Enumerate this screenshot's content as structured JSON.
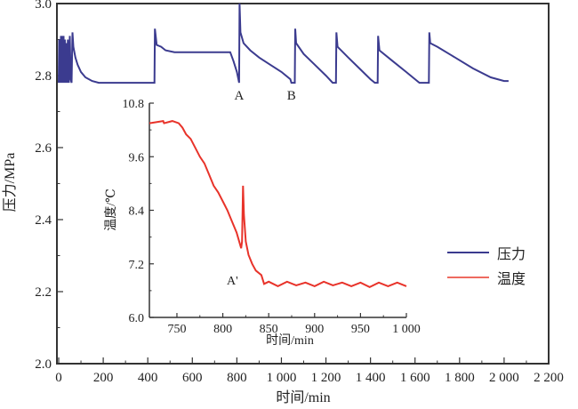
{
  "colors": {
    "pressure": "#3b3b8f",
    "temperature": "#e8332a",
    "legend_temperature": "#ee6a60"
  },
  "chart_data": [
    {
      "type": "line",
      "title": "",
      "xlabel": "时间/min",
      "ylabel": "压力/MPa",
      "xlim": [
        -8,
        2200
      ],
      "ylim": [
        2.0,
        3.0
      ],
      "xticks": [
        0,
        200,
        400,
        600,
        800,
        1000,
        1200,
        1400,
        1600,
        1800,
        2000,
        2200
      ],
      "xtick_labels": [
        "0",
        "200",
        "400",
        "600",
        "800",
        "1 000",
        "1 200",
        "1 400",
        "1 600",
        "1 800",
        "2 000",
        "2 200"
      ],
      "yticks": [
        2.0,
        2.2,
        2.4,
        2.6,
        2.8,
        3.0
      ],
      "ytick_labels": [
        "2.0",
        "2.2",
        "2.4",
        "2.6",
        "2.8",
        "3.0"
      ],
      "legend": {
        "placement": "right",
        "entries": [
          "压力",
          "温度"
        ]
      },
      "annotations": [
        {
          "text": "A",
          "x": 810,
          "y": 2.78
        },
        {
          "text": "B",
          "x": 1045,
          "y": 2.78
        }
      ],
      "series": [
        {
          "name": "压力",
          "points": [
            [
              0,
              2.78
            ],
            [
              2,
              2.9
            ],
            [
              4,
              2.78
            ],
            [
              6,
              2.9
            ],
            [
              8,
              2.78
            ],
            [
              10,
              2.91
            ],
            [
              12,
              2.78
            ],
            [
              14,
              2.91
            ],
            [
              16,
              2.78
            ],
            [
              18,
              2.91
            ],
            [
              20,
              2.78
            ],
            [
              22,
              2.91
            ],
            [
              25,
              2.78
            ],
            [
              28,
              2.9
            ],
            [
              31,
              2.78
            ],
            [
              34,
              2.89
            ],
            [
              38,
              2.78
            ],
            [
              41,
              2.9
            ],
            [
              46,
              2.78
            ],
            [
              50,
              2.91
            ],
            [
              54,
              2.79
            ],
            [
              58,
              2.78
            ],
            [
              62,
              2.92
            ],
            [
              66,
              2.88
            ],
            [
              75,
              2.85
            ],
            [
              85,
              2.83
            ],
            [
              100,
              2.81
            ],
            [
              120,
              2.795
            ],
            [
              150,
              2.785
            ],
            [
              180,
              2.78
            ],
            [
              240,
              2.78
            ],
            [
              280,
              2.78
            ],
            [
              430,
              2.78
            ],
            [
              432,
              2.93
            ],
            [
              440,
              2.885
            ],
            [
              460,
              2.88
            ],
            [
              480,
              2.87
            ],
            [
              520,
              2.865
            ],
            [
              770,
              2.865
            ],
            [
              785,
              2.84
            ],
            [
              800,
              2.81
            ],
            [
              810,
              2.78
            ],
            [
              812,
              3.0
            ],
            [
              816,
              2.92
            ],
            [
              830,
              2.89
            ],
            [
              860,
              2.87
            ],
            [
              900,
              2.85
            ],
            [
              950,
              2.83
            ],
            [
              1000,
              2.81
            ],
            [
              1040,
              2.79
            ],
            [
              1045,
              2.78
            ],
            [
              1060,
              2.78
            ],
            [
              1062,
              2.93
            ],
            [
              1066,
              2.89
            ],
            [
              1100,
              2.86
            ],
            [
              1150,
              2.83
            ],
            [
              1200,
              2.8
            ],
            [
              1230,
              2.78
            ],
            [
              1245,
              2.78
            ],
            [
              1247,
              2.92
            ],
            [
              1252,
              2.88
            ],
            [
              1300,
              2.85
            ],
            [
              1350,
              2.82
            ],
            [
              1400,
              2.79
            ],
            [
              1420,
              2.78
            ],
            [
              1432,
              2.78
            ],
            [
              1434,
              2.91
            ],
            [
              1440,
              2.87
            ],
            [
              1500,
              2.84
            ],
            [
              1560,
              2.81
            ],
            [
              1610,
              2.785
            ],
            [
              1620,
              2.78
            ],
            [
              1662,
              2.78
            ],
            [
              1664,
              2.92
            ],
            [
              1668,
              2.89
            ],
            [
              1700,
              2.88
            ],
            [
              1780,
              2.85
            ],
            [
              1860,
              2.82
            ],
            [
              1940,
              2.795
            ],
            [
              2000,
              2.785
            ],
            [
              2020,
              2.785
            ]
          ]
        }
      ]
    },
    {
      "type": "line",
      "title": "",
      "xlabel": "时间/min",
      "ylabel": "温度/℃",
      "xlim": [
        720,
        1000
      ],
      "ylim": [
        6.0,
        10.8
      ],
      "xticks": [
        750,
        800,
        850,
        900,
        950,
        1000
      ],
      "xtick_labels": [
        "750",
        "800",
        "850",
        "900",
        "950",
        "1 000"
      ],
      "yticks": [
        6.0,
        7.2,
        8.4,
        9.6,
        10.8
      ],
      "ytick_labels": [
        "6.0",
        "7.2",
        "8.4",
        "9.6",
        "10.8"
      ],
      "annotations": [
        {
          "text": "A'",
          "x": 822,
          "y": 7.2
        }
      ],
      "series": [
        {
          "name": "温度",
          "points": [
            [
              720,
              10.35
            ],
            [
              735,
              10.4
            ],
            [
              736,
              10.35
            ],
            [
              745,
              10.4
            ],
            [
              752,
              10.35
            ],
            [
              756,
              10.25
            ],
            [
              760,
              10.1
            ],
            [
              765,
              10.0
            ],
            [
              770,
              9.8
            ],
            [
              775,
              9.6
            ],
            [
              780,
              9.45
            ],
            [
              785,
              9.2
            ],
            [
              790,
              8.95
            ],
            [
              795,
              8.8
            ],
            [
              800,
              8.6
            ],
            [
              805,
              8.4
            ],
            [
              810,
              8.15
            ],
            [
              815,
              7.9
            ],
            [
              820,
              7.55
            ],
            [
              821,
              7.7
            ],
            [
              822,
              8.95
            ],
            [
              823,
              8.3
            ],
            [
              825,
              7.7
            ],
            [
              828,
              7.4
            ],
            [
              832,
              7.2
            ],
            [
              836,
              7.05
            ],
            [
              842,
              6.95
            ],
            [
              845,
              6.75
            ],
            [
              850,
              6.8
            ],
            [
              860,
              6.7
            ],
            [
              870,
              6.8
            ],
            [
              880,
              6.72
            ],
            [
              890,
              6.78
            ],
            [
              900,
              6.7
            ],
            [
              910,
              6.8
            ],
            [
              920,
              6.72
            ],
            [
              930,
              6.78
            ],
            [
              940,
              6.7
            ],
            [
              950,
              6.78
            ],
            [
              960,
              6.68
            ],
            [
              970,
              6.78
            ],
            [
              980,
              6.7
            ],
            [
              990,
              6.78
            ],
            [
              1000,
              6.7
            ]
          ]
        }
      ]
    }
  ]
}
